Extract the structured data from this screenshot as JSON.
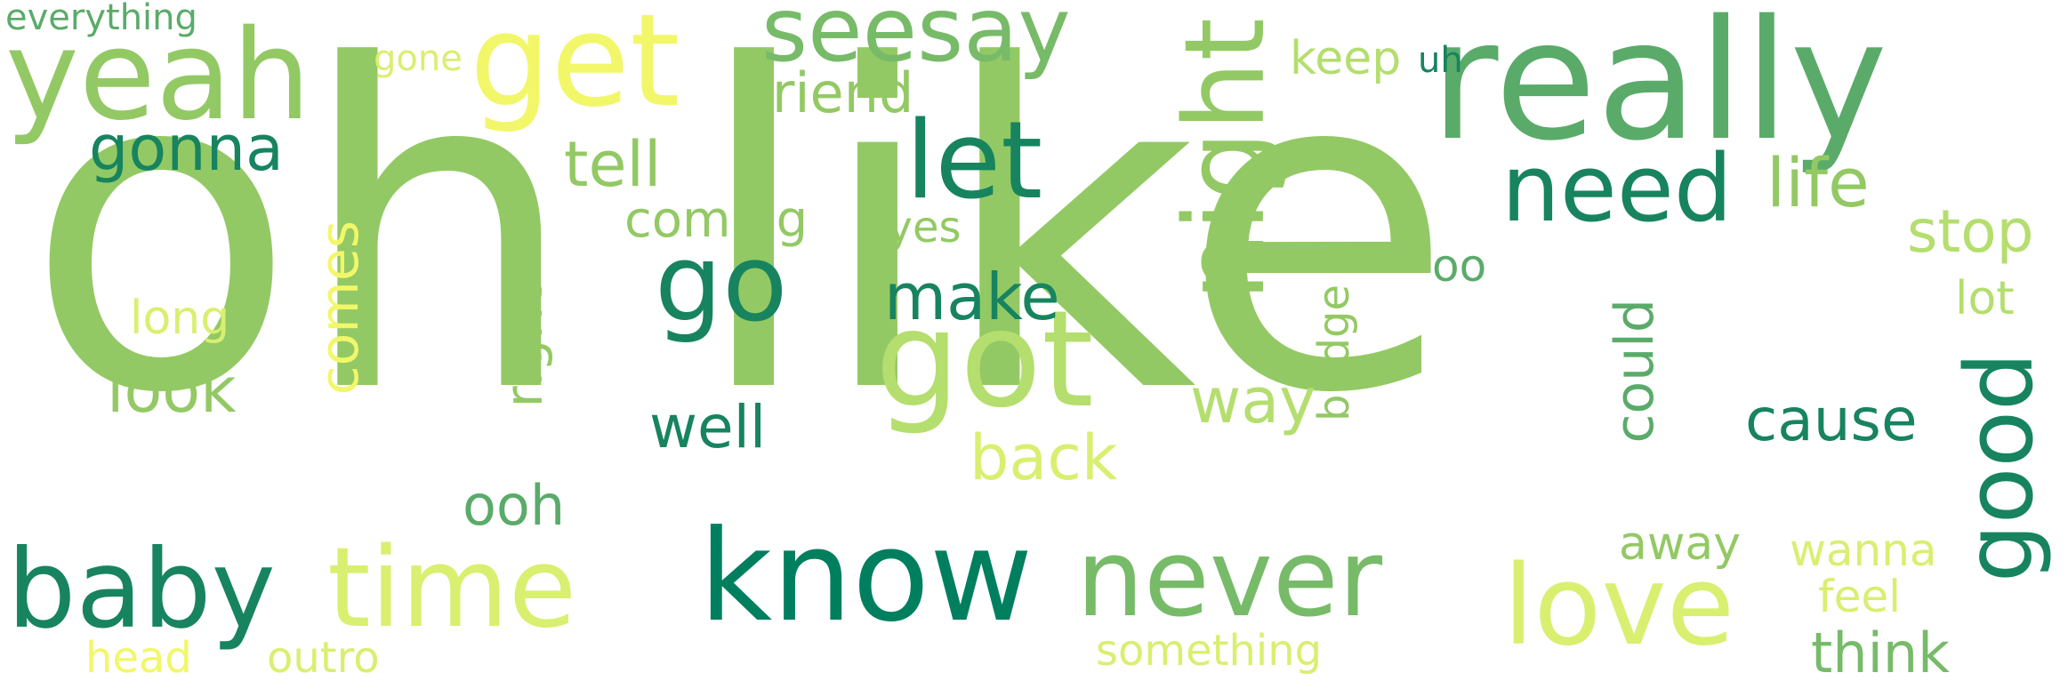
{
  "palette": {
    "light_green": "#93c964",
    "mid_green": "#5aab6a",
    "dark_green": "#17845f",
    "deep_teal": "#007f5f",
    "yellow": "#f2f76a",
    "yellow_green": "#d9ef70",
    "pale_green": "#b4de6e",
    "sage": "#77bb69"
  },
  "words": [
    {
      "text": "oh",
      "color": "#93c964"
    },
    {
      "text": "like",
      "color": "#93c964"
    },
    {
      "text": "really",
      "color": "#5aab6a"
    },
    {
      "text": "yeah",
      "color": "#93c964"
    },
    {
      "text": "get",
      "color": "#f2f76a"
    },
    {
      "text": "seesay",
      "color": "#77bb69"
    },
    {
      "text": "know",
      "color": "#007f5f"
    },
    {
      "text": "night",
      "color": "#93c964"
    },
    {
      "text": "got",
      "color": "#b4de6e"
    },
    {
      "text": "never",
      "color": "#77bb69"
    },
    {
      "text": "love",
      "color": "#d9ef70"
    },
    {
      "text": "baby",
      "color": "#17845f"
    },
    {
      "text": "time",
      "color": "#d9ef70"
    },
    {
      "text": "let",
      "color": "#17845f"
    },
    {
      "text": "go",
      "color": "#17845f"
    },
    {
      "text": "need",
      "color": "#17845f"
    },
    {
      "text": "good",
      "color": "#17845f"
    },
    {
      "text": "gonna",
      "color": "#17845f"
    },
    {
      "text": "everything",
      "color": "#5aab6a"
    },
    {
      "text": "gone",
      "color": "#d9ef70"
    },
    {
      "text": "friend",
      "color": "#93c964"
    },
    {
      "text": "tell",
      "color": "#93c964"
    },
    {
      "text": "coming",
      "color": "#93c964"
    },
    {
      "text": "eyes",
      "color": "#93c964"
    },
    {
      "text": "keep",
      "color": "#b4de6e"
    },
    {
      "text": "uh",
      "color": "#17845f"
    },
    {
      "text": "life",
      "color": "#93c964"
    },
    {
      "text": "stop",
      "color": "#b4de6e"
    },
    {
      "text": "lot",
      "color": "#b4de6e"
    },
    {
      "text": "make",
      "color": "#17845f"
    },
    {
      "text": "comes",
      "color": "#f2f76a"
    },
    {
      "text": "long",
      "color": "#d9ef70"
    },
    {
      "text": "look",
      "color": "#93c964"
    },
    {
      "text": "right",
      "color": "#93c964"
    },
    {
      "text": "well",
      "color": "#17845f"
    },
    {
      "text": "way",
      "color": "#b4de6e"
    },
    {
      "text": "back",
      "color": "#d9ef70"
    },
    {
      "text": "bridge",
      "color": "#93c964"
    },
    {
      "text": "could",
      "color": "#5aab6a"
    },
    {
      "text": "oo",
      "color": "#5aab6a"
    },
    {
      "text": "cause",
      "color": "#17845f"
    },
    {
      "text": "ooh",
      "color": "#5aab6a"
    },
    {
      "text": "away",
      "color": "#93c964"
    },
    {
      "text": "wanna",
      "color": "#d9ef70"
    },
    {
      "text": "feel",
      "color": "#d9ef70"
    },
    {
      "text": "think",
      "color": "#77bb69"
    },
    {
      "text": "head",
      "color": "#f2f76a"
    },
    {
      "text": "outro",
      "color": "#d9ef70"
    },
    {
      "text": "something",
      "color": "#d9ef70"
    }
  ]
}
